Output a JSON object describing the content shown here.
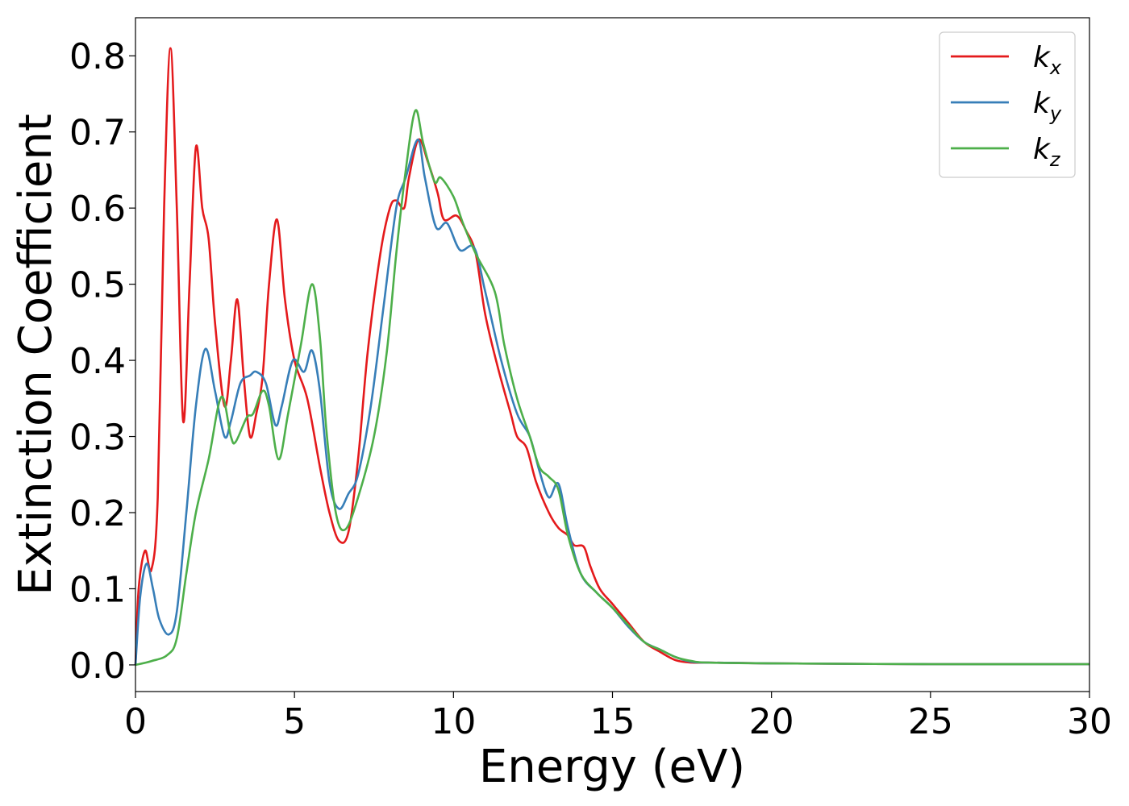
{
  "chart_data": {
    "type": "line",
    "title": "",
    "xlabel": "Energy (eV)",
    "ylabel": "Extinction Coefficient",
    "xlim": [
      0,
      30
    ],
    "ylim": [
      -0.035,
      0.85
    ],
    "xticks": [
      0,
      5,
      10,
      15,
      20,
      25,
      30
    ],
    "xtick_labels": [
      "0",
      "5",
      "10",
      "15",
      "20",
      "25",
      "30"
    ],
    "yticks": [
      0.0,
      0.1,
      0.2,
      0.3,
      0.4,
      0.5,
      0.6,
      0.7,
      0.8
    ],
    "ytick_labels": [
      "0.0",
      "0.1",
      "0.2",
      "0.3",
      "0.4",
      "0.5",
      "0.6",
      "0.7",
      "0.8"
    ],
    "grid": false,
    "legend_position": "top-right",
    "series": [
      {
        "name": "k_x",
        "label_main": "k",
        "label_sub": "x",
        "color": "#e41a1c",
        "points": [
          [
            0,
            0.0
          ],
          [
            0.1,
            0.1
          ],
          [
            0.3,
            0.15
          ],
          [
            0.5,
            0.125
          ],
          [
            0.7,
            0.22
          ],
          [
            0.9,
            0.6
          ],
          [
            1.1,
            0.81
          ],
          [
            1.3,
            0.6
          ],
          [
            1.5,
            0.32
          ],
          [
            1.7,
            0.5
          ],
          [
            1.9,
            0.68
          ],
          [
            2.1,
            0.6
          ],
          [
            2.3,
            0.56
          ],
          [
            2.5,
            0.45
          ],
          [
            2.8,
            0.34
          ],
          [
            3.0,
            0.4
          ],
          [
            3.2,
            0.48
          ],
          [
            3.4,
            0.38
          ],
          [
            3.6,
            0.3
          ],
          [
            3.8,
            0.33
          ],
          [
            4.0,
            0.38
          ],
          [
            4.2,
            0.5
          ],
          [
            4.45,
            0.585
          ],
          [
            4.7,
            0.48
          ],
          [
            5.0,
            0.4
          ],
          [
            5.4,
            0.35
          ],
          [
            5.8,
            0.26
          ],
          [
            6.1,
            0.2
          ],
          [
            6.4,
            0.163
          ],
          [
            6.7,
            0.175
          ],
          [
            7.0,
            0.27
          ],
          [
            7.3,
            0.41
          ],
          [
            7.7,
            0.54
          ],
          [
            8.0,
            0.6
          ],
          [
            8.2,
            0.61
          ],
          [
            8.45,
            0.6
          ],
          [
            8.6,
            0.64
          ],
          [
            8.9,
            0.69
          ],
          [
            9.2,
            0.66
          ],
          [
            9.5,
            0.62
          ],
          [
            9.7,
            0.585
          ],
          [
            10.1,
            0.59
          ],
          [
            10.4,
            0.57
          ],
          [
            10.7,
            0.54
          ],
          [
            11.0,
            0.46
          ],
          [
            11.4,
            0.39
          ],
          [
            11.8,
            0.33
          ],
          [
            12.0,
            0.3
          ],
          [
            12.3,
            0.285
          ],
          [
            12.6,
            0.24
          ],
          [
            13.0,
            0.2
          ],
          [
            13.3,
            0.18
          ],
          [
            13.6,
            0.17
          ],
          [
            13.8,
            0.157
          ],
          [
            14.1,
            0.155
          ],
          [
            14.3,
            0.13
          ],
          [
            14.6,
            0.1
          ],
          [
            15.0,
            0.08
          ],
          [
            15.5,
            0.055
          ],
          [
            16.0,
            0.03
          ],
          [
            16.5,
            0.017
          ],
          [
            17.0,
            0.006
          ],
          [
            17.5,
            0.003
          ],
          [
            18,
            0.003
          ],
          [
            20,
            0.002
          ],
          [
            25,
            0.001
          ],
          [
            30,
            0.001
          ]
        ]
      },
      {
        "name": "k_y",
        "label_main": "k",
        "label_sub": "y",
        "color": "#377eb8",
        "points": [
          [
            0,
            0.0
          ],
          [
            0.15,
            0.09
          ],
          [
            0.35,
            0.133
          ],
          [
            0.55,
            0.1
          ],
          [
            0.75,
            0.06
          ],
          [
            1.05,
            0.04
          ],
          [
            1.3,
            0.07
          ],
          [
            1.6,
            0.2
          ],
          [
            1.9,
            0.34
          ],
          [
            2.2,
            0.415
          ],
          [
            2.5,
            0.36
          ],
          [
            2.8,
            0.3
          ],
          [
            3.0,
            0.32
          ],
          [
            3.3,
            0.37
          ],
          [
            3.6,
            0.38
          ],
          [
            3.8,
            0.385
          ],
          [
            4.1,
            0.37
          ],
          [
            4.4,
            0.315
          ],
          [
            4.6,
            0.34
          ],
          [
            4.95,
            0.4
          ],
          [
            5.3,
            0.385
          ],
          [
            5.55,
            0.413
          ],
          [
            5.8,
            0.36
          ],
          [
            6.1,
            0.24
          ],
          [
            6.4,
            0.205
          ],
          [
            6.7,
            0.225
          ],
          [
            7.0,
            0.25
          ],
          [
            7.4,
            0.34
          ],
          [
            7.8,
            0.47
          ],
          [
            8.2,
            0.6
          ],
          [
            8.5,
            0.64
          ],
          [
            8.88,
            0.69
          ],
          [
            9.1,
            0.64
          ],
          [
            9.45,
            0.575
          ],
          [
            9.8,
            0.58
          ],
          [
            10.2,
            0.545
          ],
          [
            10.65,
            0.548
          ],
          [
            11.0,
            0.49
          ],
          [
            11.5,
            0.4
          ],
          [
            12.0,
            0.33
          ],
          [
            12.4,
            0.3
          ],
          [
            12.7,
            0.255
          ],
          [
            13.0,
            0.22
          ],
          [
            13.3,
            0.238
          ],
          [
            13.6,
            0.18
          ],
          [
            14.0,
            0.12
          ],
          [
            14.5,
            0.095
          ],
          [
            15.0,
            0.075
          ],
          [
            15.5,
            0.05
          ],
          [
            16.0,
            0.03
          ],
          [
            16.5,
            0.02
          ],
          [
            17.0,
            0.01
          ],
          [
            17.5,
            0.004
          ],
          [
            18,
            0.003
          ],
          [
            20,
            0.002
          ],
          [
            25,
            0.001
          ],
          [
            30,
            0.001
          ]
        ]
      },
      {
        "name": "k_z",
        "label_main": "k",
        "label_sub": "z",
        "color": "#4daf4a",
        "points": [
          [
            0,
            0.0
          ],
          [
            0.5,
            0.005
          ],
          [
            1.0,
            0.013
          ],
          [
            1.3,
            0.035
          ],
          [
            1.6,
            0.12
          ],
          [
            1.9,
            0.2
          ],
          [
            2.3,
            0.27
          ],
          [
            2.7,
            0.352
          ],
          [
            3.0,
            0.3
          ],
          [
            3.15,
            0.293
          ],
          [
            3.5,
            0.325
          ],
          [
            3.7,
            0.33
          ],
          [
            4.0,
            0.36
          ],
          [
            4.2,
            0.34
          ],
          [
            4.5,
            0.27
          ],
          [
            4.8,
            0.33
          ],
          [
            5.2,
            0.42
          ],
          [
            5.55,
            0.5
          ],
          [
            5.8,
            0.43
          ],
          [
            6.0,
            0.31
          ],
          [
            6.3,
            0.2
          ],
          [
            6.6,
            0.178
          ],
          [
            7.0,
            0.22
          ],
          [
            7.5,
            0.3
          ],
          [
            7.9,
            0.41
          ],
          [
            8.2,
            0.54
          ],
          [
            8.5,
            0.65
          ],
          [
            8.8,
            0.728
          ],
          [
            9.05,
            0.685
          ],
          [
            9.4,
            0.635
          ],
          [
            9.6,
            0.64
          ],
          [
            10.0,
            0.615
          ],
          [
            10.3,
            0.58
          ],
          [
            10.7,
            0.54
          ],
          [
            11.3,
            0.49
          ],
          [
            11.6,
            0.42
          ],
          [
            12.0,
            0.35
          ],
          [
            12.4,
            0.3
          ],
          [
            12.7,
            0.26
          ],
          [
            13.0,
            0.247
          ],
          [
            13.3,
            0.23
          ],
          [
            13.6,
            0.17
          ],
          [
            14.0,
            0.12
          ],
          [
            14.5,
            0.095
          ],
          [
            15.0,
            0.075
          ],
          [
            15.5,
            0.052
          ],
          [
            16.0,
            0.03
          ],
          [
            16.5,
            0.02
          ],
          [
            17.0,
            0.01
          ],
          [
            17.5,
            0.005
          ],
          [
            18,
            0.003
          ],
          [
            20,
            0.002
          ],
          [
            25,
            0.001
          ],
          [
            30,
            0.001
          ]
        ]
      }
    ]
  }
}
